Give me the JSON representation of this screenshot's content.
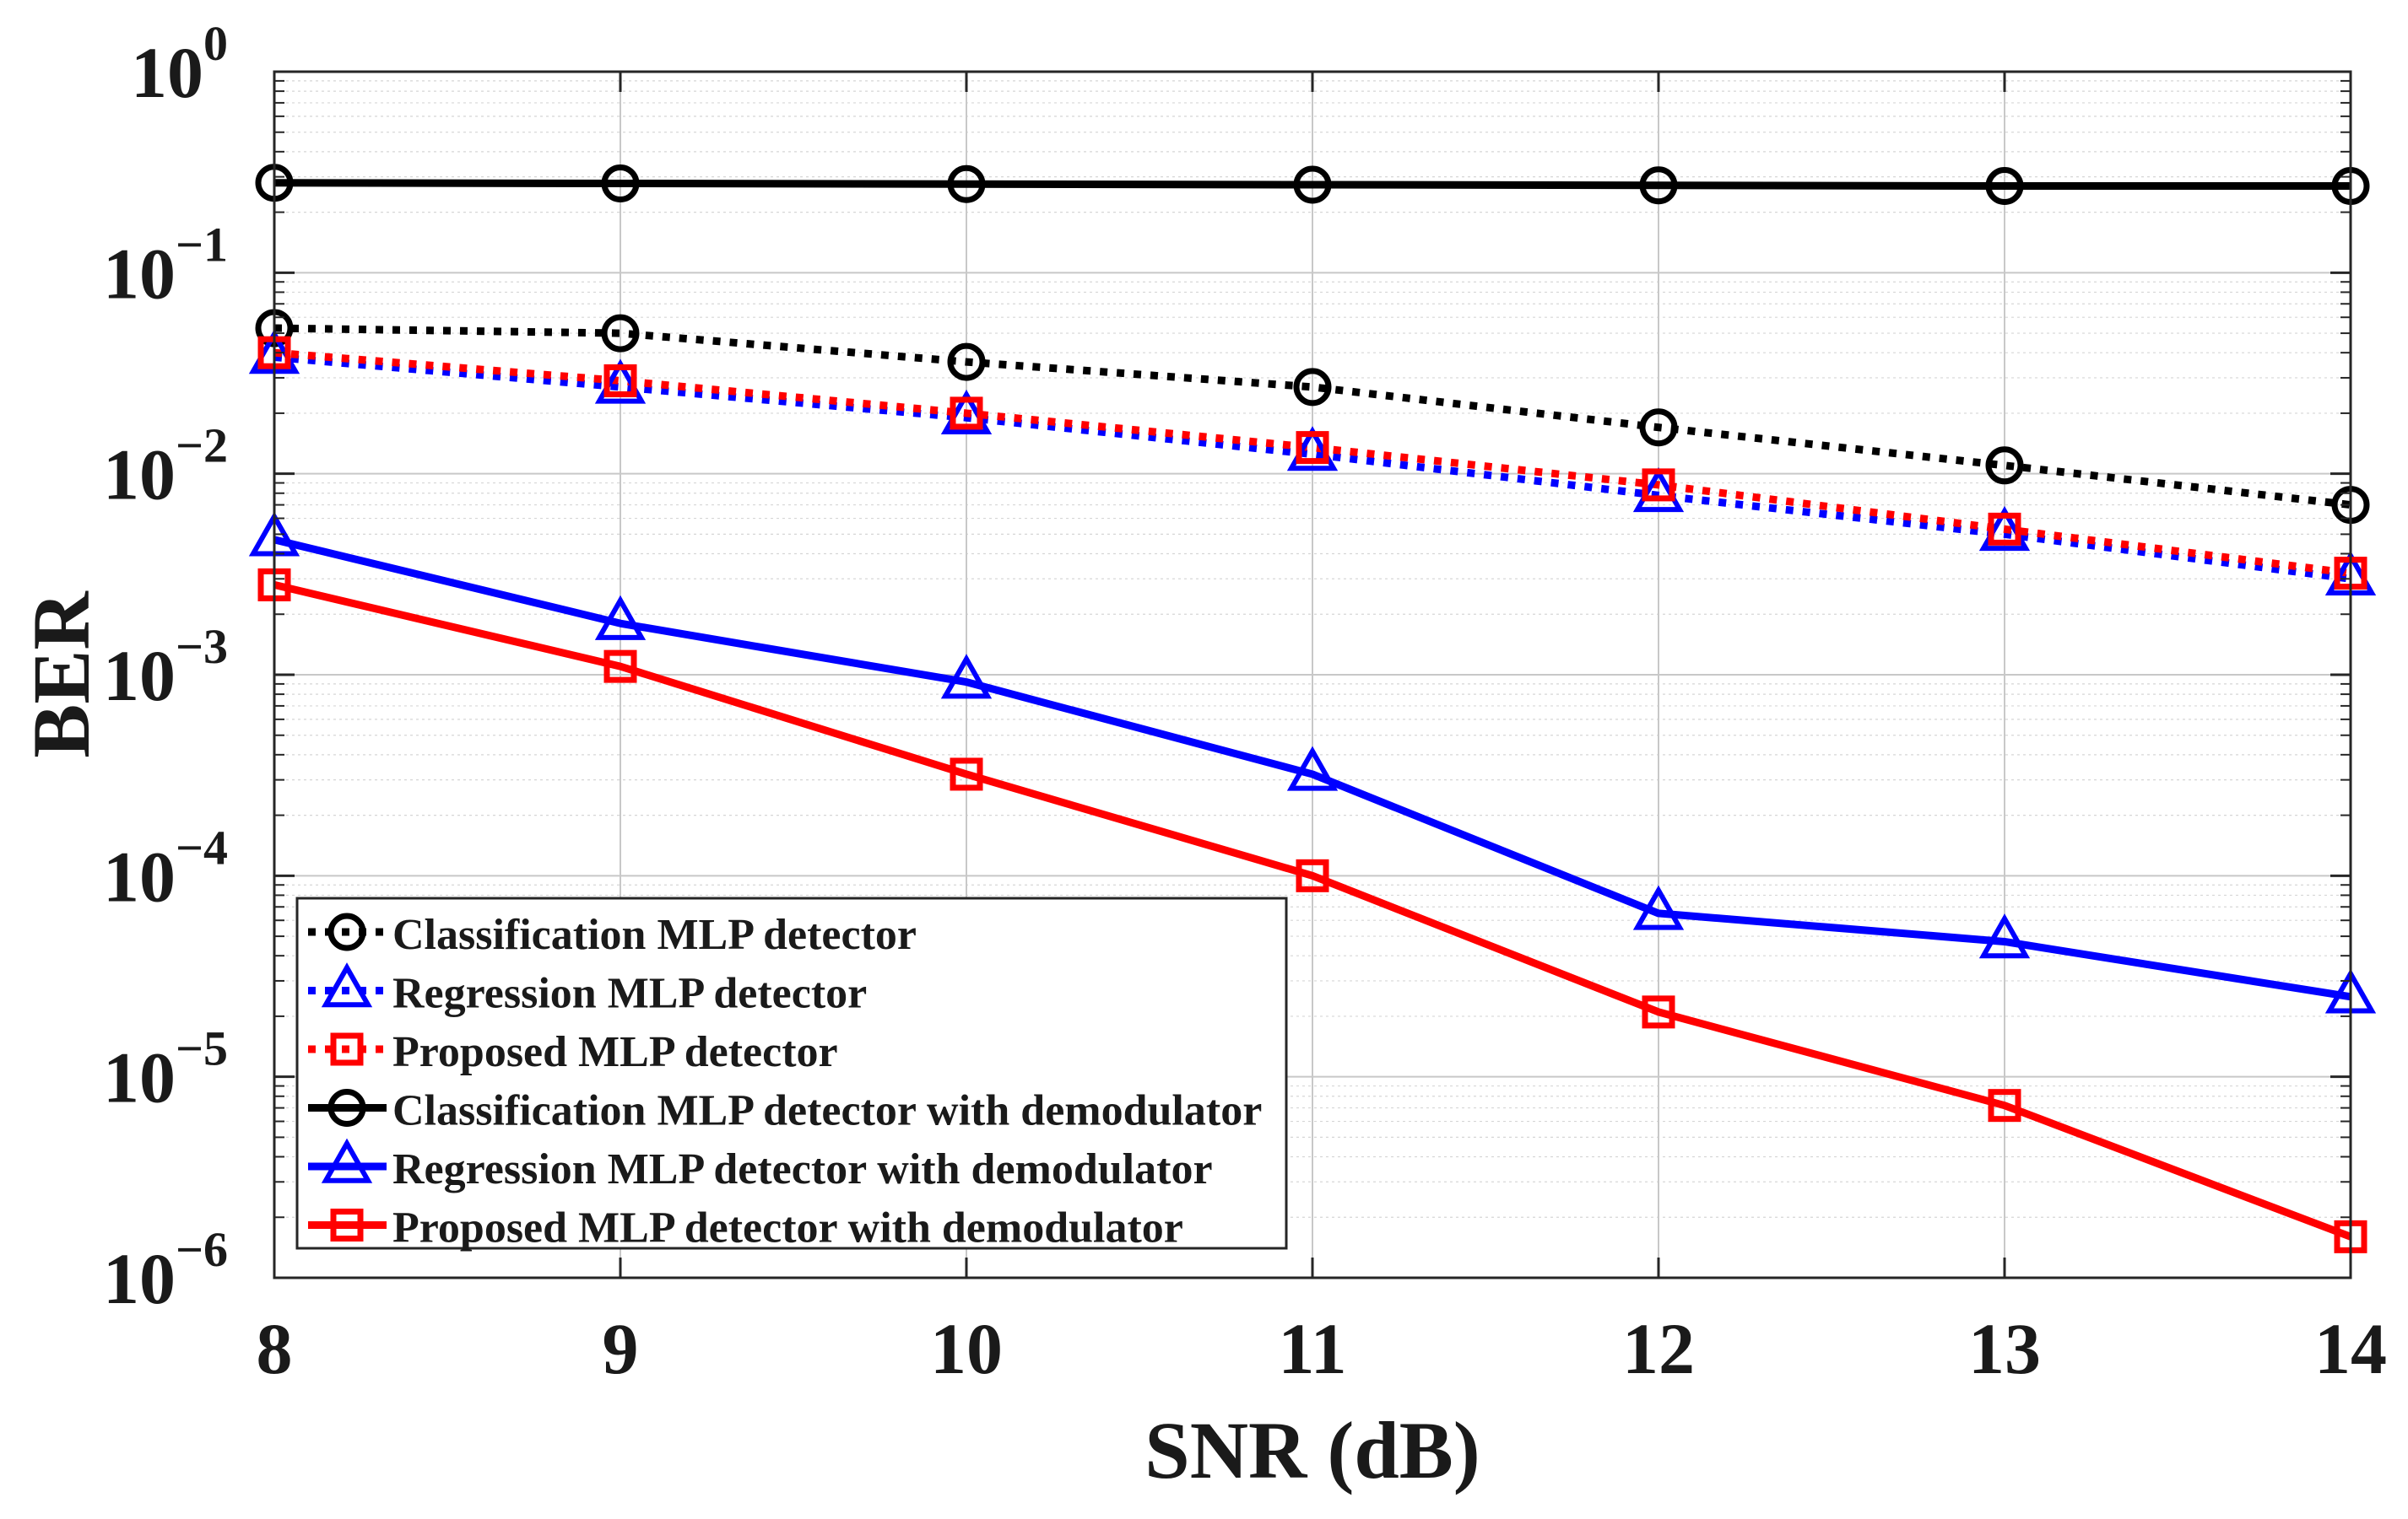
{
  "chart_data": {
    "type": "line",
    "title": "",
    "xlabel": "SNR (dB)",
    "ylabel": "BER",
    "x": [
      8,
      9,
      10,
      11,
      12,
      13,
      14
    ],
    "xlim": [
      8,
      14
    ],
    "ylim": [
      1e-06,
      1
    ],
    "yscale": "log",
    "grid": true,
    "legend_position": "bottom-left",
    "xticks": [
      {
        "value": 8,
        "label": "8"
      },
      {
        "value": 9,
        "label": "9"
      },
      {
        "value": 10,
        "label": "10"
      },
      {
        "value": 11,
        "label": "11"
      },
      {
        "value": 12,
        "label": "12"
      },
      {
        "value": 13,
        "label": "13"
      },
      {
        "value": 14,
        "label": "14"
      }
    ],
    "yticks": [
      {
        "value": 1,
        "base": "10",
        "exp": "0"
      },
      {
        "value": 0.1,
        "base": "10",
        "exp": "−1"
      },
      {
        "value": 0.01,
        "base": "10",
        "exp": "−2"
      },
      {
        "value": 0.001,
        "base": "10",
        "exp": "−3"
      },
      {
        "value": 0.0001,
        "base": "10",
        "exp": "−4"
      },
      {
        "value": 1e-05,
        "base": "10",
        "exp": "−5"
      },
      {
        "value": 1e-06,
        "base": "10",
        "exp": "−6"
      }
    ],
    "series": [
      {
        "name": "Classification MLP detector",
        "color": "#000000",
        "dash": "dotted",
        "marker": "circle",
        "values": [
          0.053,
          0.05,
          0.036,
          0.027,
          0.017,
          0.011,
          0.007
        ]
      },
      {
        "name": "Regression MLP detector",
        "color": "#0000ff",
        "dash": "dotted",
        "marker": "triangle",
        "values": [
          0.038,
          0.027,
          0.019,
          0.0125,
          0.0078,
          0.005,
          0.003
        ]
      },
      {
        "name": "Proposed MLP detector",
        "color": "#ff0000",
        "dash": "dotted",
        "marker": "square",
        "values": [
          0.04,
          0.029,
          0.02,
          0.0135,
          0.0088,
          0.0053,
          0.0032
        ]
      },
      {
        "name": "Classification MLP detector with demodulator",
        "color": "#000000",
        "dash": "solid",
        "marker": "circle",
        "values": [
          0.28,
          0.278,
          0.276,
          0.274,
          0.272,
          0.27,
          0.27
        ]
      },
      {
        "name": "Regression MLP detector with demodulator",
        "color": "#0000ff",
        "dash": "solid",
        "marker": "triangle",
        "values": [
          0.0047,
          0.0018,
          0.00092,
          0.00032,
          6.5e-05,
          4.7e-05,
          2.5e-05
        ]
      },
      {
        "name": "Proposed MLP detector with demodulator",
        "color": "#ff0000",
        "dash": "solid",
        "marker": "square",
        "values": [
          0.0028,
          0.0011,
          0.00032,
          0.0001,
          2.1e-05,
          7.2e-06,
          1.6e-06
        ]
      }
    ]
  }
}
